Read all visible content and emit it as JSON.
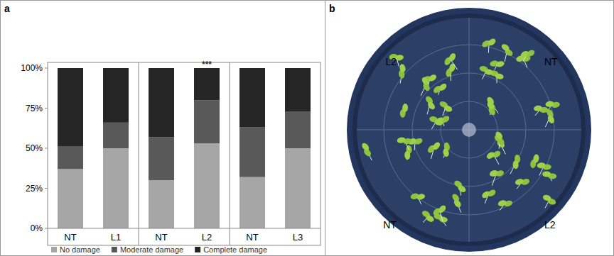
{
  "chart_data": {
    "type": "bar",
    "stacked": true,
    "title": "a",
    "categories": [
      "NT",
      "L1",
      "NT",
      "L2",
      "NT",
      "L3"
    ],
    "series": [
      {
        "name": "No damage",
        "color": "#a6a6a6",
        "values": [
          37,
          50,
          30,
          53,
          32,
          50
        ]
      },
      {
        "name": "Moderate damage",
        "color": "#595959",
        "values": [
          14,
          16,
          27,
          27,
          31,
          23
        ]
      },
      {
        "name": "Complete damage",
        "color": "#262626",
        "values": [
          49,
          34,
          43,
          20,
          37,
          27
        ]
      }
    ],
    "ylim": [
      0,
      100
    ],
    "yticks": [
      {
        "value": 0,
        "label": "0%"
      },
      {
        "value": 25,
        "label": "25%"
      },
      {
        "value": 50,
        "label": "50%"
      },
      {
        "value": 75,
        "label": "75%"
      },
      {
        "value": 100,
        "label": "100%"
      }
    ],
    "grid": false,
    "legend": "bottom",
    "annotations": [
      {
        "x": 3,
        "text": "***"
      }
    ]
  },
  "photo": {
    "label": "b",
    "labels": [
      "L2",
      "NT",
      "NT",
      "L2"
    ]
  }
}
